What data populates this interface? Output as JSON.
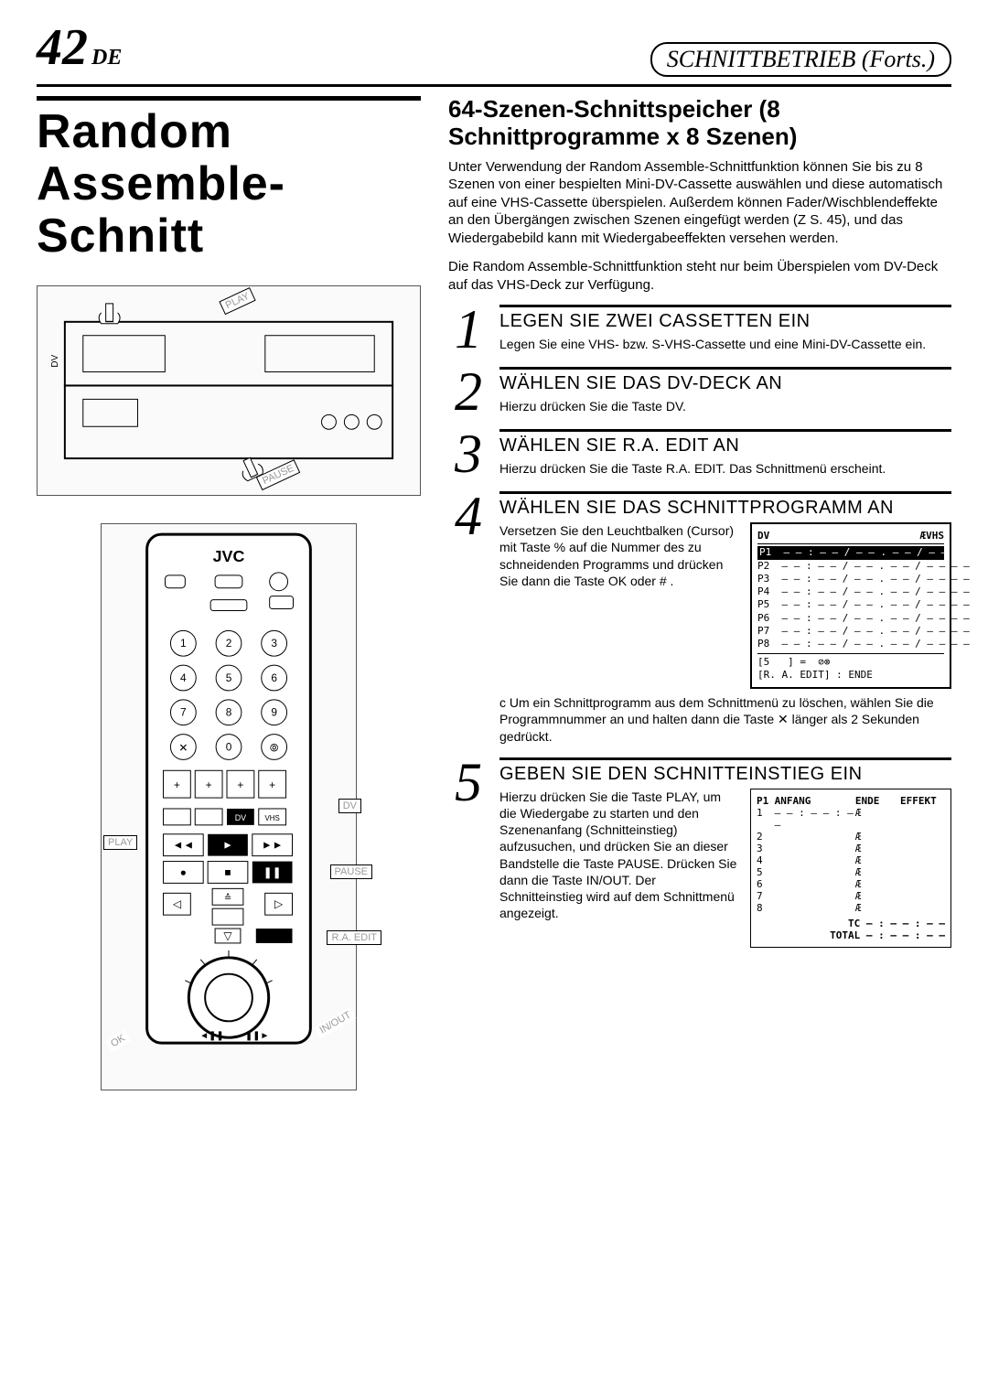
{
  "page": {
    "number": "42",
    "lang_suffix": "DE",
    "section_header": "SCHNITTBETRIEB (Forts.)"
  },
  "main_title": "Random Assemble-Schnitt",
  "deck_callouts": {
    "play": "PLAY",
    "pause": "PAUSE",
    "dv": "DV"
  },
  "remote_callouts": {
    "dv": "DV",
    "play": "PLAY",
    "pause": "PAUSE",
    "ra_edit": "R.A. EDIT",
    "ok": "OK",
    "inout": "IN/OUT",
    "brand": "JVC"
  },
  "intro": {
    "heading": "64-Szenen-Schnittspeicher (8 Schnittprogramme x 8 Szenen)",
    "p1": "Unter Verwendung der Random Assemble-Schnittfunktion können Sie bis zu 8 Szenen von einer bespielten Mini-DV-Cassette auswählen und diese automatisch auf eine VHS-Cassette überspielen. Außerdem können Fader/Wischblendeffekte an den Übergängen zwischen Szenen eingefügt werden (Z  S. 45), und das Wiedergabebild kann mit Wiedergabeeffekten versehen werden.",
    "p2": "Die Random Assemble-Schnittfunktion steht nur beim Überspielen vom DV-Deck auf das VHS-Deck zur Verfügung."
  },
  "steps": [
    {
      "n": "1",
      "title": "LEGEN SIE ZWEI CASSETTEN EIN",
      "text": "Legen Sie eine VHS- bzw. S-VHS-Cassette und eine Mini-DV-Cassette ein."
    },
    {
      "n": "2",
      "title": "WÄHLEN SIE DAS DV-DECK AN",
      "text": "Hierzu drücken Sie die Taste DV."
    },
    {
      "n": "3",
      "title": "WÄHLEN SIE R.A. EDIT AN",
      "text": "Hierzu drücken Sie die Taste R.A. EDIT. Das Schnittmenü erscheint."
    },
    {
      "n": "4",
      "title": "WÄHLEN SIE DAS SCHNITTPROGRAMM AN",
      "text": "Versetzen Sie den Leuchtbalken (Cursor) mit Taste %  auf die Nummer des zu schneidenden Programms und drücken Sie dann die Taste OK oder # .",
      "note": "c Um ein Schnittprogramm aus dem Schnittmenü zu löschen, wählen Sie die Programmnummer an und halten dann die Taste ✕ länger als 2 Sekunden gedrückt."
    },
    {
      "n": "5",
      "title": "GEBEN SIE DEN SCHNITTEINSTIEG EIN",
      "text": "Hierzu drücken Sie die Taste PLAY, um die Wiedergabe zu starten und den Szenenanfang (Schnitteinstieg) aufzusuchen, und drücken Sie an dieser Bandstelle die Taste PAUSE. Drücken Sie dann die Taste IN/OUT. Der Schnitteinstieg wird auf dem Schnittmenü angezeigt."
    }
  ],
  "osd1": {
    "header_left": "DV",
    "header_right": "ÆVHS",
    "rows": [
      "P1  – – : – – / – – . – – / – – – –",
      "P2  – – : – – / – – . – – / – – – –",
      "P3  – – : – – / – – . – – / – – – –",
      "P4  – – : – – / – – . – – / – – – –",
      "P5  – – : – – / – – . – – / – – – –",
      "P6  – – : – – / – – . – – / – – – –",
      "P7  – – : – – / – – . – – / – – – –",
      "P8  – – : – – / – – . – – / – – – –"
    ],
    "footer1": "[5   ] =  ⊘⊗",
    "footer2": "[R. A. EDIT] : ENDE"
  },
  "osd2": {
    "cols": [
      "P1",
      "ANFANG",
      "ENDE",
      "EFFEKT"
    ],
    "rows": [
      [
        "1",
        "– – : – – : – –",
        "Æ",
        ""
      ],
      [
        "2",
        "",
        "Æ",
        ""
      ],
      [
        "3",
        "",
        "Æ",
        ""
      ],
      [
        "4",
        "",
        "Æ",
        ""
      ],
      [
        "5",
        "",
        "Æ",
        ""
      ],
      [
        "6",
        "",
        "Æ",
        ""
      ],
      [
        "7",
        "",
        "Æ",
        ""
      ],
      [
        "8",
        "",
        "Æ",
        ""
      ]
    ],
    "tc": "TC    – : – – : – –",
    "total": "TOTAL  – : – – : – –"
  },
  "colors": {
    "fg": "#000000",
    "bg": "#ffffff",
    "rule": "#000000"
  }
}
